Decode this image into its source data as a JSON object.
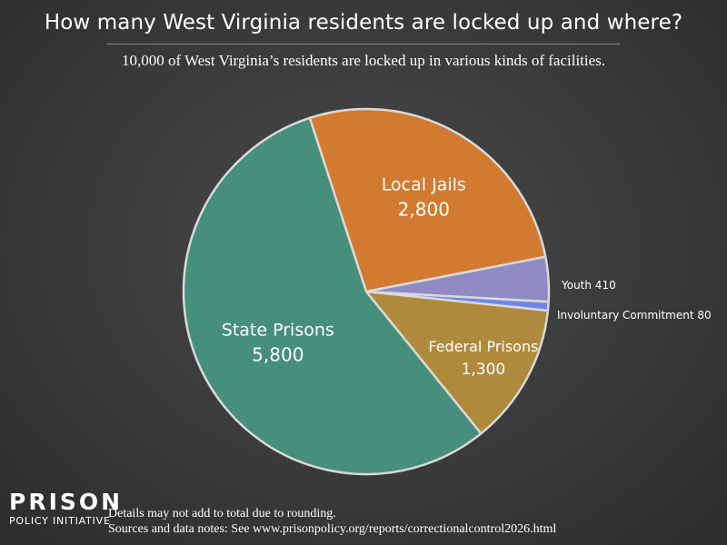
{
  "title": "How many West Virginia residents are locked up and where?",
  "subtitle": "10,000 of West Virginia’s residents are locked up in various kinds of facilities.",
  "footer": {
    "logo_line1": "PRISON",
    "logo_line2": "POLICY INITIATIVE",
    "note1": "Details may not add to total due to rounding.",
    "note2": "Sources and data notes: See www.prisonpolicy.org/reports/correctionalcontrol2026.html"
  },
  "chart_data": {
    "type": "pie",
    "title": "How many West Virginia residents are locked up and where?",
    "subtitle": "10,000 of West Virginia’s residents are locked up in various kinds of facilities.",
    "total": 10000,
    "start_angle_deg": -18,
    "slices": [
      {
        "name": "Local Jails",
        "value": 2800,
        "value_label": "2,800",
        "color": "#d27a2f",
        "label_position": "inside"
      },
      {
        "name": "Youth",
        "value": 410,
        "value_label": "410",
        "color": "#8d8ac4",
        "label_position": "outside"
      },
      {
        "name": "Involuntary Commitment",
        "value": 80,
        "value_label": "80",
        "color": "#6f86e8",
        "label_position": "outside"
      },
      {
        "name": "Federal Prisons",
        "value": 1300,
        "value_label": "1,300",
        "color": "#b08a3c",
        "label_position": "inside"
      },
      {
        "name": "State Prisons",
        "value": 5800,
        "value_label": "5,800",
        "color": "#468f7c",
        "label_position": "inside"
      }
    ]
  }
}
